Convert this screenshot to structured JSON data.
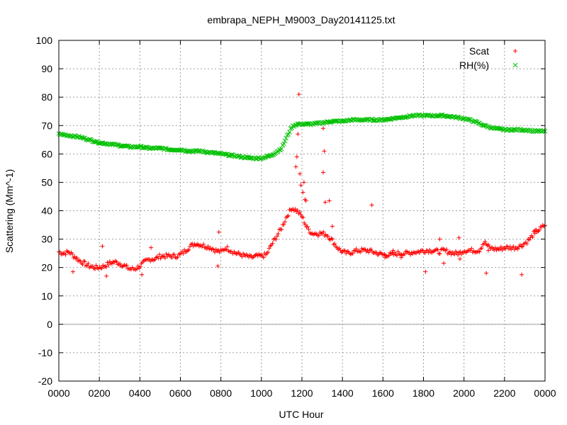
{
  "chart_data": {
    "type": "scatter",
    "title": "embrapa_NEPH_M9003_Day20141125.txt",
    "xlabel": "UTC Hour",
    "ylabel": "Scattering (Mm^-1)",
    "xlim": [
      0,
      24
    ],
    "ylim": [
      -20,
      100
    ],
    "grid": true,
    "legend_position": "top-right",
    "x_tick_labels": [
      "0000",
      "0200",
      "0400",
      "0600",
      "0800",
      "1000",
      "1200",
      "1400",
      "1600",
      "1800",
      "2000",
      "2200",
      "0000"
    ],
    "y_tick_labels": [
      "-20",
      "-10",
      "0",
      "10",
      "20",
      "30",
      "40",
      "50",
      "60",
      "70",
      "80",
      "90",
      "100"
    ],
    "series": [
      {
        "name": "Scat",
        "marker": "+",
        "color": "#ff0000",
        "x": [
          0,
          0.25,
          0.5,
          0.75,
          1,
          1.25,
          1.5,
          1.75,
          2,
          2.25,
          2.5,
          2.75,
          3,
          3.25,
          3.5,
          3.75,
          4,
          4.25,
          4.5,
          4.75,
          5,
          5.25,
          5.5,
          5.75,
          6,
          6.25,
          6.5,
          6.75,
          7,
          7.25,
          7.5,
          7.75,
          8,
          8.25,
          8.5,
          8.75,
          9,
          9.25,
          9.5,
          9.75,
          10,
          10.25,
          10.5,
          10.75,
          11,
          11.25,
          11.5,
          11.75,
          12,
          12.25,
          12.5,
          12.75,
          13,
          13.25,
          13.5,
          13.75,
          14,
          14.25,
          14.5,
          14.75,
          15,
          15.25,
          15.5,
          15.75,
          16,
          16.25,
          16.5,
          16.75,
          17,
          17.25,
          17.5,
          17.75,
          18,
          18.25,
          18.5,
          18.75,
          19,
          19.25,
          19.5,
          19.75,
          20,
          20.25,
          20.5,
          20.75,
          21,
          21.25,
          21.5,
          21.75,
          22,
          22.25,
          22.5,
          22.75,
          23,
          23.25,
          23.5,
          23.75,
          24
        ],
        "y": [
          25.5,
          25,
          25.5,
          24,
          22.5,
          21.5,
          20.5,
          20,
          20,
          20.5,
          21.5,
          22,
          21.5,
          20.5,
          19.5,
          19.5,
          20.5,
          22,
          23,
          23,
          24,
          24,
          24,
          24,
          24.5,
          26,
          27.5,
          28.5,
          28,
          27.5,
          27,
          26,
          25.5,
          27,
          26,
          25,
          24.5,
          24,
          23.5,
          24,
          24,
          24.5,
          28,
          31,
          34,
          38,
          41,
          40,
          38,
          34,
          32,
          32,
          32,
          31.5,
          29.5,
          27,
          25.5,
          25,
          25.5,
          26,
          26,
          26,
          25.5,
          25,
          24.5,
          24.5,
          24.5,
          25,
          25,
          25,
          25.5,
          25.5,
          26,
          26,
          26,
          25.5,
          26,
          25.5,
          25,
          25,
          26,
          26,
          26,
          26,
          29,
          27,
          26.5,
          26.5,
          27,
          27,
          27,
          27.5,
          28.5,
          30,
          32.5,
          33.5,
          35
        ],
        "outliers": [
          [
            0.7,
            18.5
          ],
          [
            2.15,
            27.5
          ],
          [
            2.35,
            17
          ],
          [
            4.1,
            17.5
          ],
          [
            4.55,
            27
          ],
          [
            7.9,
            32.5
          ],
          [
            7.85,
            20.5
          ],
          [
            11.85,
            81
          ],
          [
            11.8,
            67
          ],
          [
            11.75,
            59
          ],
          [
            11.7,
            55.5
          ],
          [
            11.9,
            53
          ],
          [
            12.1,
            50
          ],
          [
            12.05,
            46.5
          ],
          [
            11.95,
            49
          ],
          [
            12.2,
            43.5
          ],
          [
            12.15,
            44
          ],
          [
            13.05,
            69
          ],
          [
            13.1,
            61
          ],
          [
            13.05,
            53.5
          ],
          [
            13.15,
            43
          ],
          [
            13.35,
            43.5
          ],
          [
            13.5,
            34.5
          ],
          [
            15.45,
            42
          ],
          [
            16.1,
            23.5
          ],
          [
            16.5,
            26
          ],
          [
            16.9,
            23.5
          ],
          [
            18.1,
            18.5
          ],
          [
            18.8,
            30
          ],
          [
            19,
            21.5
          ],
          [
            19.8,
            23
          ],
          [
            19.75,
            30.5
          ],
          [
            21.1,
            18
          ],
          [
            21.2,
            26
          ],
          [
            22.85,
            17.5
          ],
          [
            23.5,
            32
          ]
        ]
      },
      {
        "name": "RH(%)",
        "marker": "x",
        "color": "#00c000",
        "x": [
          0,
          0.5,
          1,
          1.5,
          2,
          2.5,
          3,
          3.5,
          4,
          4.5,
          5,
          5.5,
          6,
          6.5,
          7,
          7.5,
          8,
          8.5,
          9,
          9.5,
          10,
          10.5,
          11,
          11.25,
          11.5,
          11.75,
          12,
          12.5,
          13,
          13.5,
          14,
          14.5,
          15,
          15.5,
          16,
          16.5,
          17,
          17.5,
          18,
          18.5,
          19,
          19.5,
          20,
          20.5,
          21,
          21.5,
          22,
          22.5,
          23,
          23.5,
          24
        ],
        "y": [
          67,
          66.5,
          66,
          65,
          64,
          63.5,
          63,
          62.5,
          62.5,
          62,
          62,
          61.5,
          61.5,
          61,
          61,
          60.5,
          60,
          59.5,
          59,
          58.5,
          58.5,
          59.5,
          62,
          66,
          69.5,
          70.5,
          70.5,
          70.5,
          71,
          71.5,
          71.5,
          72,
          72,
          72,
          72,
          72.5,
          73,
          73.5,
          73.5,
          73.5,
          73.5,
          73,
          72.5,
          71.5,
          70,
          69,
          68.5,
          68.5,
          68.5,
          68,
          68
        ]
      }
    ]
  }
}
